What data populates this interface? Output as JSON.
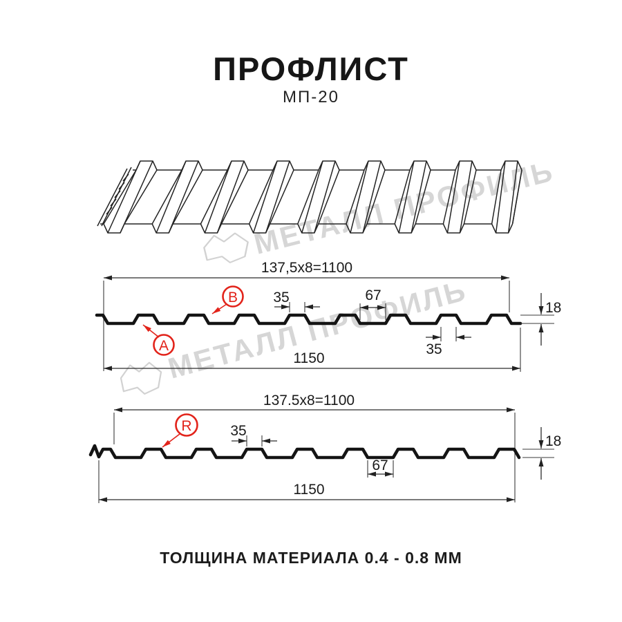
{
  "page": {
    "title": "ПРОФЛИСТ",
    "subtitle": "МП-20",
    "footer": "ТОЛЩИНА МАТЕРИАЛА 0.4 - 0.8 ММ"
  },
  "watermark": {
    "brand": "МЕТАЛЛ ПРОФИЛЬ"
  },
  "colors": {
    "drawing_line": "#141414",
    "dimension_line": "#2b2b2b",
    "callout_red": "#e2231a",
    "watermark_gray": "#d6d6d6"
  },
  "profile_top": {
    "pitch_label": "137,5x8=1100",
    "rib_top_width": "35",
    "valley_width": "67",
    "height": "18",
    "rib_top_width_right": "35",
    "overall_width": "1150",
    "label_a": "A",
    "label_b": "B"
  },
  "profile_bottom": {
    "pitch_label": "137.5x8=1100",
    "rib_top_width": "35",
    "valley_width": "67",
    "height": "18",
    "overall_width": "1150",
    "label_r": "R"
  }
}
